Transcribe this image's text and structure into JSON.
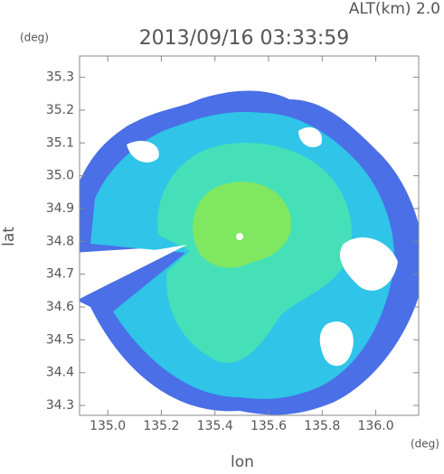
{
  "chart_data": {
    "type": "radar-map",
    "title": "2013/09/16 03:33:59",
    "altitude_label": "ALT(km) 2.0",
    "x_label": "lon",
    "y_label": "lat",
    "x_unit": "(deg)",
    "y_unit": "(deg)",
    "xlim": [
      134.895,
      136.16
    ],
    "ylim": [
      34.27,
      35.365
    ],
    "xticks": [
      {
        "value": 135,
        "label": "135.0"
      },
      135.2,
      135.4,
      135.6,
      135.8,
      {
        "value": 136,
        "label": "136.0"
      }
    ],
    "yticks": [
      34.3,
      34.4,
      34.5,
      34.6,
      34.7,
      34.8,
      34.9,
      {
        "value": 35,
        "label": "35.0"
      },
      35.1,
      35.2,
      35.3
    ]
  }
}
